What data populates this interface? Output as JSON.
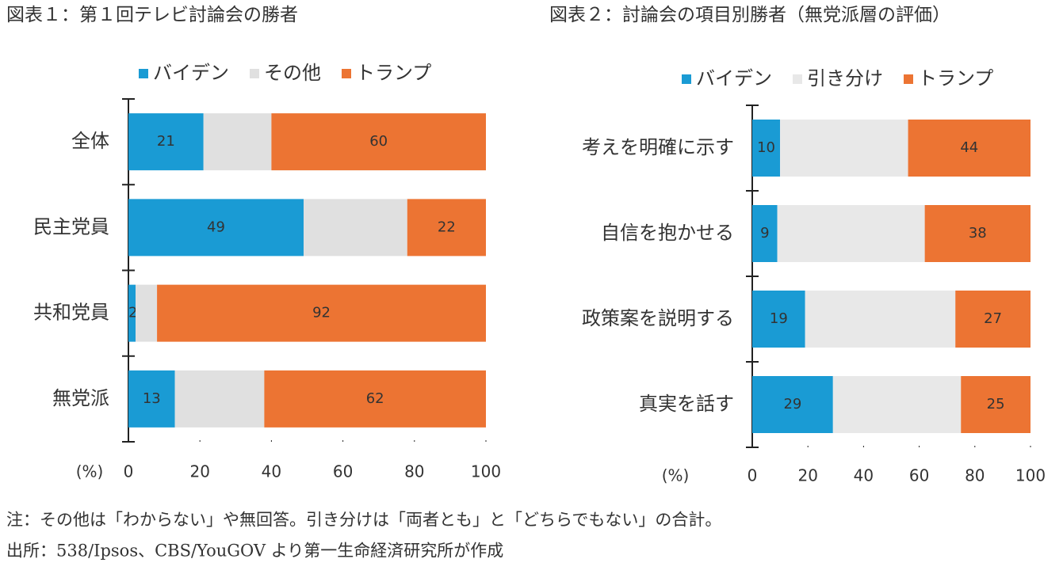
{
  "chart_data": [
    {
      "type": "stacked-hbar",
      "title": "図表１：第１回テレビ討論会の勝者",
      "categories": [
        "全体",
        "民主党員",
        "共和党員",
        "無党派"
      ],
      "series": [
        {
          "name": "バイデン",
          "color": "#1a9bd4",
          "values": [
            21,
            49,
            2,
            13
          ],
          "data_labels": true
        },
        {
          "name": "その他",
          "color": "#e0e0e0",
          "values": [
            19,
            29,
            6,
            25
          ],
          "data_labels": false
        },
        {
          "name": "トランプ",
          "color": "#ec7433",
          "values": [
            60,
            22,
            92,
            62
          ],
          "data_labels": true
        }
      ],
      "x_label": "(%)",
      "xlim": [
        0,
        100
      ],
      "xticks": [
        0,
        20,
        40,
        60,
        80,
        100
      ],
      "legend": "top"
    },
    {
      "type": "stacked-hbar",
      "title": "図表２：討論会の項目別勝者（無党派層の評価）",
      "categories": [
        "考えを明確に示す",
        "自信を抱かせる",
        "政策案を説明する",
        "真実を話す"
      ],
      "series": [
        {
          "name": "バイデン",
          "color": "#1a9bd4",
          "values": [
            10,
            9,
            19,
            29
          ],
          "data_labels": true
        },
        {
          "name": "引き分け",
          "color": "#e8e8e8",
          "values": [
            46,
            53,
            54,
            46
          ],
          "data_labels": false
        },
        {
          "name": "トランプ",
          "color": "#ec7433",
          "values": [
            44,
            38,
            27,
            25
          ],
          "data_labels": true
        }
      ],
      "x_label": "(%)",
      "xlim": [
        0,
        100
      ],
      "xticks": [
        0,
        20,
        40,
        60,
        80,
        100
      ],
      "legend": "top"
    }
  ],
  "footnotes": [
    "注：その他は「わからない」や無回答。引き分けは「両者とも」と「どちらでもない」の合計。",
    "出所：538/Ipsos、CBS/YouGOV より第一生命経済研究所が作成"
  ]
}
